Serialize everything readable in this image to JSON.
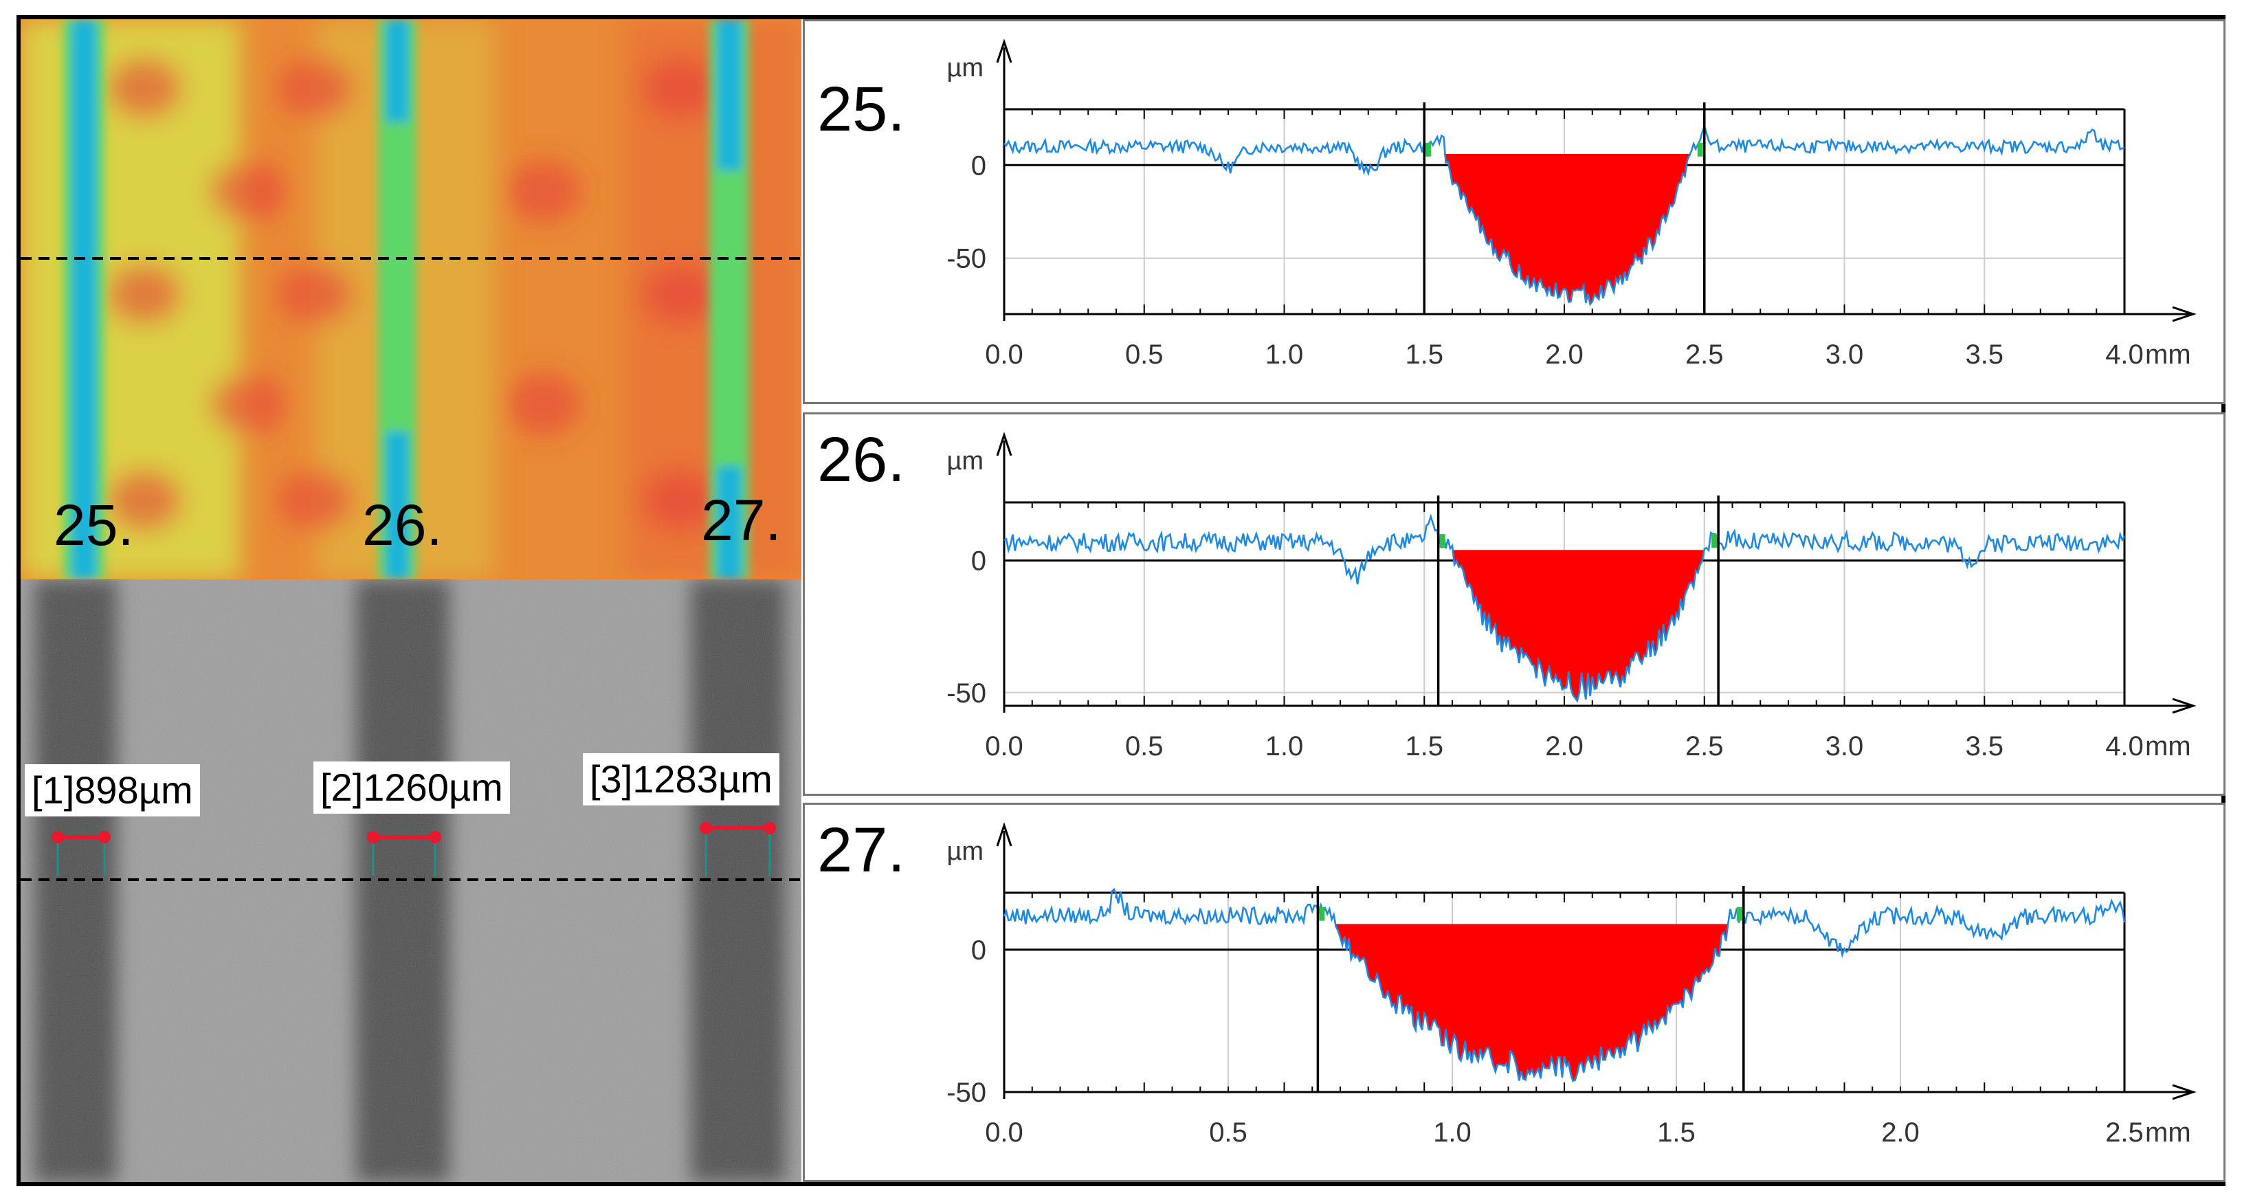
{
  "left_panel": {
    "heatmap": {
      "groove_labels": [
        "25.",
        "26.",
        "27."
      ],
      "colors": {
        "background": "#e98a36",
        "light": "#d9d848",
        "groove_core": "#1fb4d8",
        "groove_edge": "#5fd66a",
        "hot": "#e8383a"
      }
    },
    "micrograph": {
      "measurements": [
        "[1]898µm",
        "[2]1260µm",
        "[3]1283µm"
      ],
      "colors": {
        "background": "#9a9a9a",
        "groove": "#4a4a4a",
        "marker": "#e8192c",
        "guide": "#1e8f8a"
      }
    }
  },
  "chart_data": [
    {
      "type": "line",
      "id": "25.",
      "unit_y": "µm",
      "unit_x": "mm",
      "xlim": [
        0,
        4.0
      ],
      "ylim": [
        -80,
        30
      ],
      "x_ticks": [
        "0.0",
        "0.5",
        "1.0",
        "1.5",
        "2.0",
        "2.5",
        "3.0",
        "3.5",
        "4.0"
      ],
      "y_ticks": [
        "0",
        "-50"
      ],
      "y_tick_values": [
        0,
        -50
      ],
      "bounds": [
        1.5,
        2.5
      ],
      "fill_level": 6,
      "baseline": 10,
      "noise": 3.5,
      "dips": [
        [
          0.8,
          -4
        ],
        [
          1.3,
          -7
        ]
      ],
      "spikes": [
        [
          2.5,
          18
        ],
        [
          3.88,
          19
        ],
        [
          1.55,
          14
        ]
      ],
      "valley": {
        "start": 1.57,
        "center": 2.05,
        "end": 2.45,
        "depth": -70
      },
      "series": [
        {
          "name": "profile",
          "color": "#1e88e5"
        }
      ],
      "fill_color": "#ff0000"
    },
    {
      "type": "line",
      "id": "26.",
      "unit_y": "µm",
      "unit_x": "mm",
      "xlim": [
        0,
        4.0
      ],
      "ylim": [
        -55,
        22
      ],
      "x_ticks": [
        "0.0",
        "0.5",
        "1.0",
        "1.5",
        "2.0",
        "2.5",
        "3.0",
        "3.5",
        "4.0"
      ],
      "y_ticks": [
        "0",
        "-50"
      ],
      "y_tick_values": [
        0,
        -50
      ],
      "bounds": [
        1.55,
        2.55
      ],
      "fill_level": 4,
      "baseline": 7,
      "noise": 3.5,
      "dips": [
        [
          1.25,
          -10
        ],
        [
          3.45,
          -1
        ]
      ],
      "spikes": [
        [
          1.52,
          14
        ],
        [
          2.6,
          10
        ]
      ],
      "valley": {
        "start": 1.6,
        "center": 2.07,
        "end": 2.5,
        "depth": -48
      },
      "series": [
        {
          "name": "profile",
          "color": "#1e88e5"
        }
      ],
      "fill_color": "#ff0000"
    },
    {
      "type": "line",
      "id": "27.",
      "unit_y": "µm",
      "unit_x": "mm",
      "xlim": [
        0,
        2.5
      ],
      "ylim": [
        -50,
        20
      ],
      "x_ticks": [
        "0.0",
        "0.5",
        "1.0",
        "1.5",
        "2.0",
        "2.5"
      ],
      "y_ticks": [
        "0",
        "-50"
      ],
      "y_tick_values": [
        0,
        -50
      ],
      "bounds": [
        0.7,
        1.65
      ],
      "fill_level": 9,
      "baseline": 12,
      "noise": 3.0,
      "dips": [
        [
          1.87,
          -2
        ],
        [
          2.2,
          3
        ]
      ],
      "spikes": [
        [
          0.7,
          16
        ],
        [
          0.25,
          19
        ],
        [
          2.47,
          17
        ]
      ],
      "valley": {
        "start": 0.74,
        "center": 1.22,
        "end": 1.62,
        "depth": -42
      },
      "series": [
        {
          "name": "profile",
          "color": "#1e88e5"
        }
      ],
      "fill_color": "#ff0000"
    }
  ]
}
